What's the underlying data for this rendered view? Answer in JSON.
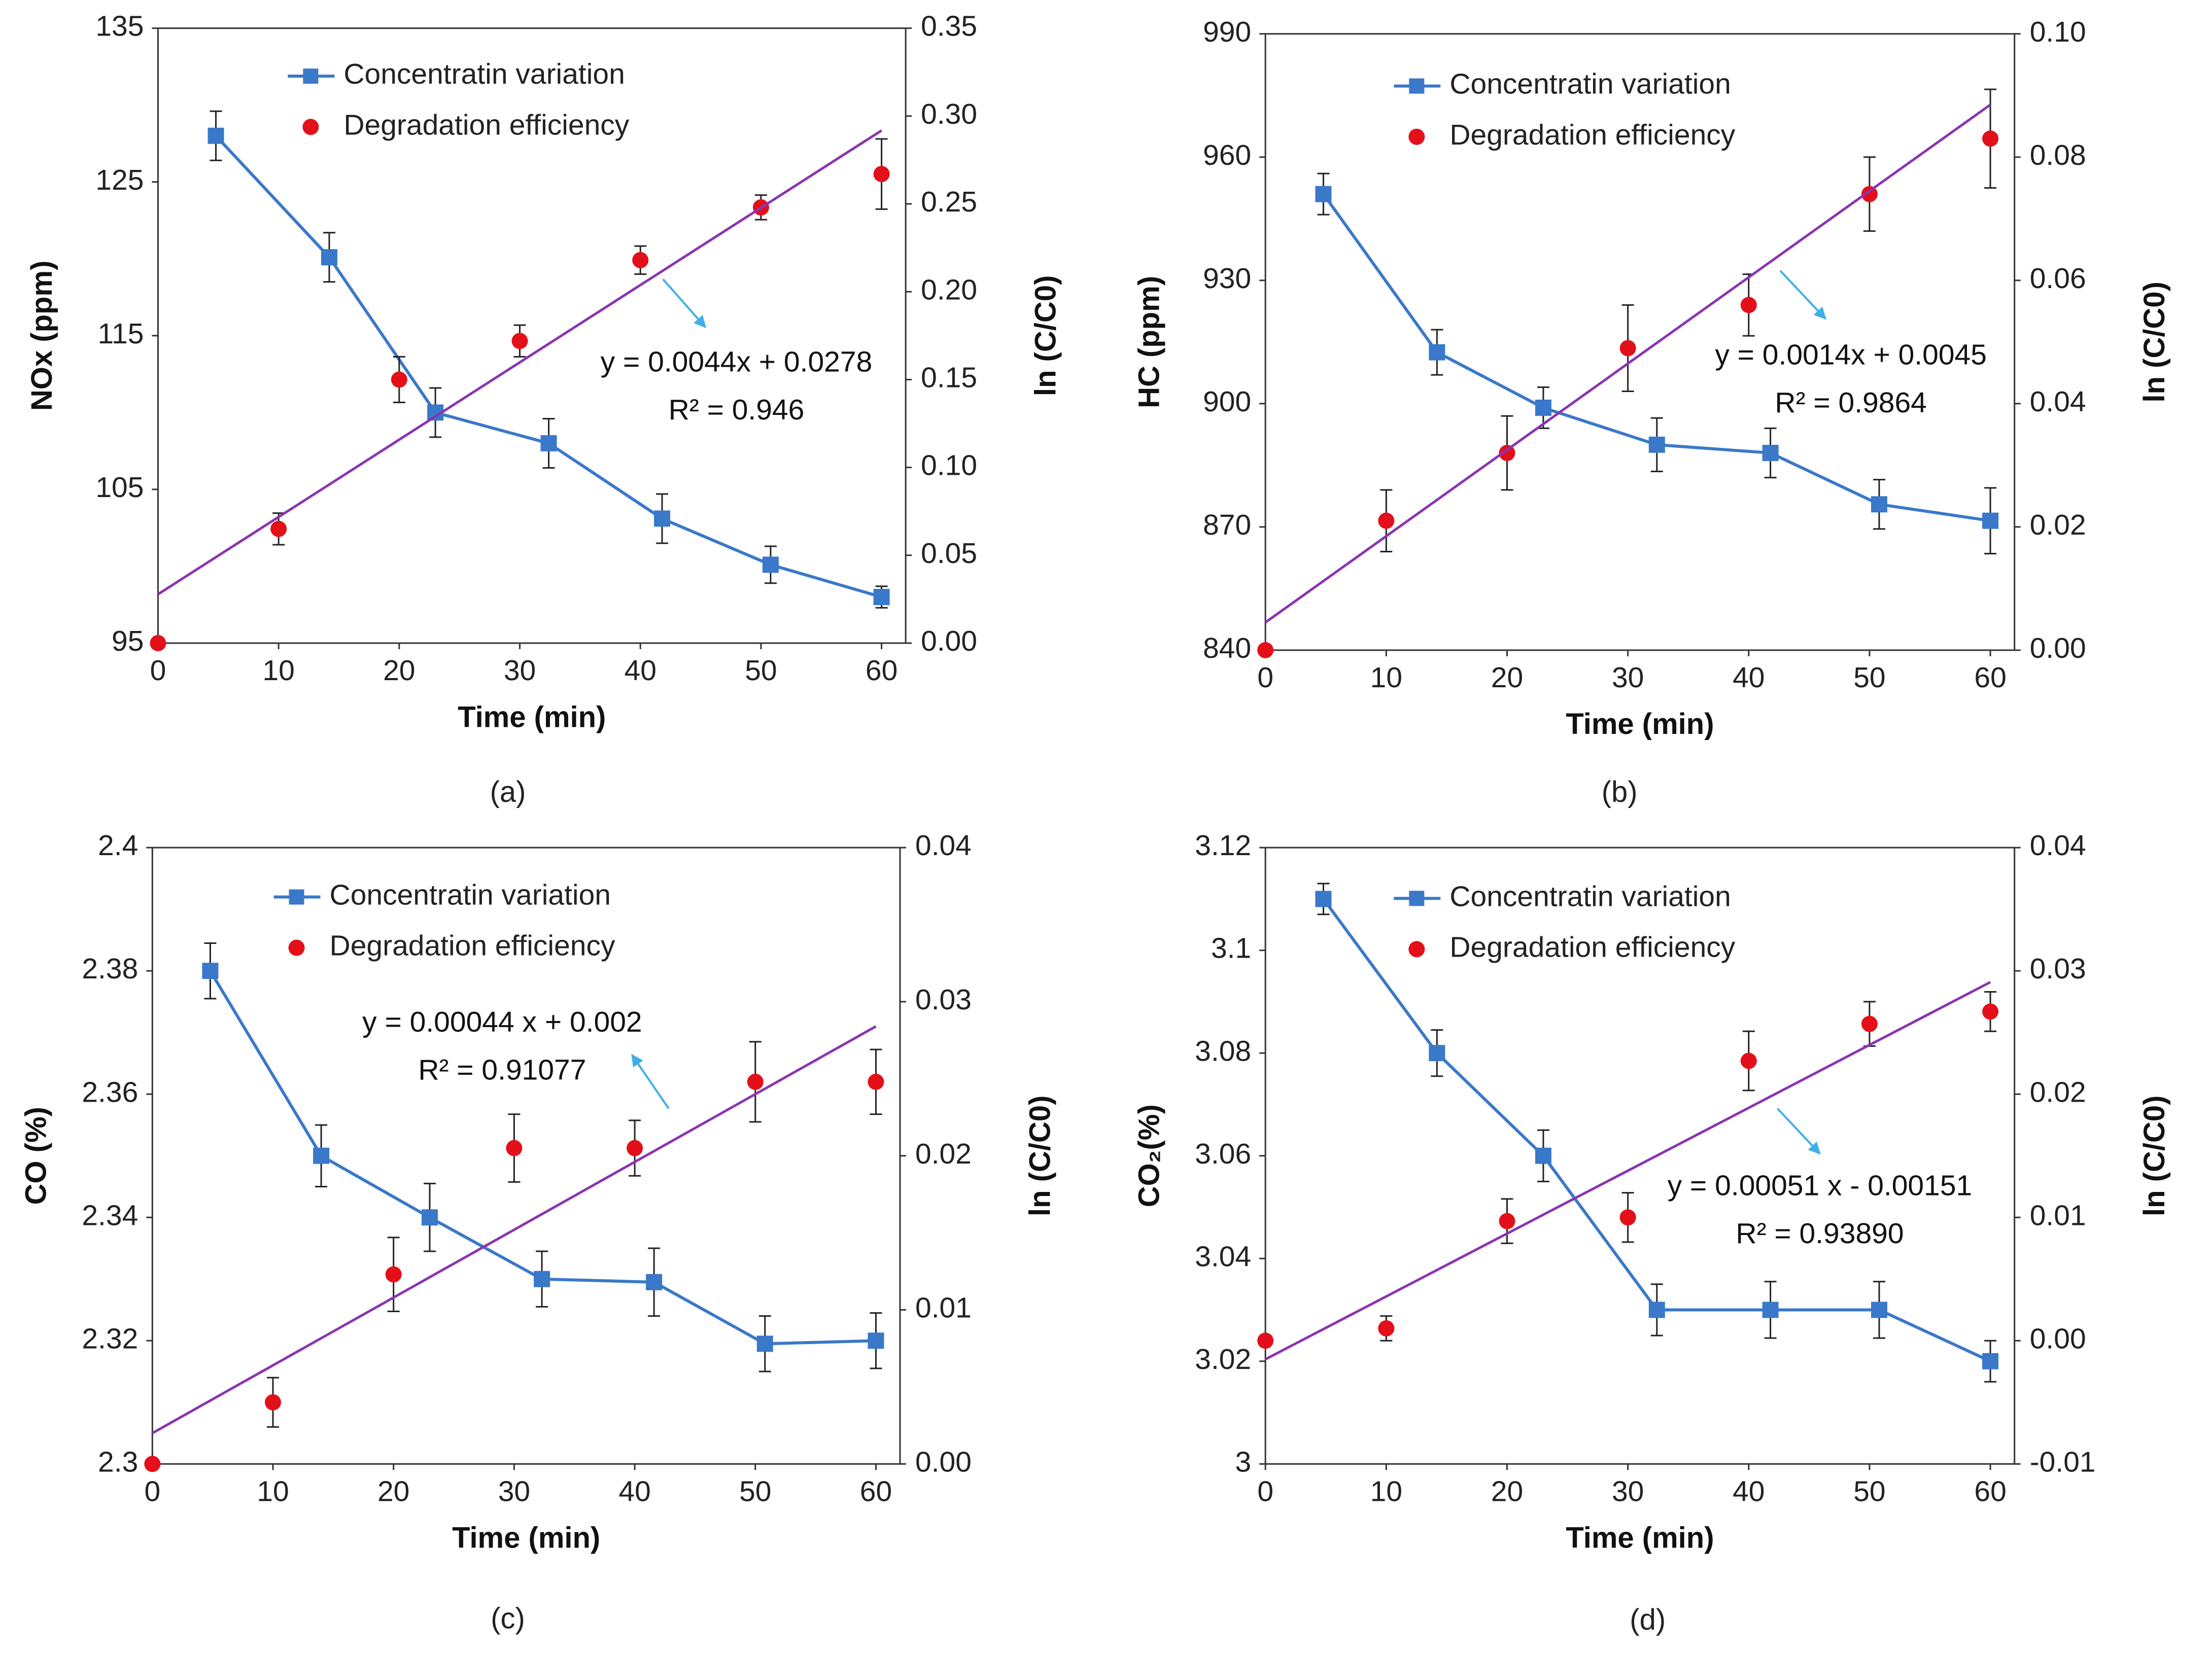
{
  "chart_data": [
    {
      "type": "line",
      "panel": "(a)",
      "xlabel": "Time (min)",
      "ylabel": "NOx (ppm)",
      "ylabel_right": "ln (C/C0)",
      "xticks": [
        "0",
        "10",
        "20",
        "30",
        "40",
        "50",
        "60"
      ],
      "yticks_left": [
        "95",
        "105",
        "115",
        "125",
        "135"
      ],
      "yticks_right": [
        "0.00",
        "0.05",
        "0.10",
        "0.15",
        "0.20",
        "0.25",
        "0.30",
        "0.35"
      ],
      "xlim": [
        0,
        62
      ],
      "ylim_left": [
        95,
        135
      ],
      "ylim_right": [
        0,
        0.35
      ],
      "series": [
        {
          "name": "Concentratin variation",
          "axis": "left",
          "style": "line-square",
          "color": "#3A78C9",
          "x": [
            4.8,
            14.2,
            23,
            32.4,
            41.8,
            50.8,
            60
          ],
          "y": [
            128,
            120.1,
            110,
            108,
            103.1,
            100.1,
            98
          ],
          "err": [
            1.6,
            1.6,
            1.6,
            1.6,
            1.6,
            1.2,
            0.7
          ]
        },
        {
          "name": "Degradation efficiency",
          "axis": "right",
          "style": "marker-circle",
          "color": "#E3101A",
          "x": [
            0,
            10,
            20,
            30,
            40,
            50,
            60
          ],
          "y": [
            0,
            0.065,
            0.15,
            0.172,
            0.218,
            0.248,
            0.267
          ],
          "err": [
            0,
            0.009,
            0.013,
            0.009,
            0.008,
            0.007,
            0.02
          ]
        },
        {
          "name": "Linear fit",
          "axis": "right",
          "style": "line",
          "color": "#8A34B2",
          "slope": 0.0044,
          "intercept": 0.0278,
          "x_range": [
            0,
            60
          ]
        }
      ],
      "equation": "y = 0.0044x + 0.0278",
      "r_squared": "R² = 0.946",
      "annotation_arrow": "light-blue arrow pointing at fit line"
    },
    {
      "type": "line",
      "panel": "(b)",
      "xlabel": "Time (min)",
      "ylabel": "HC (ppm)",
      "ylabel_right": "ln (C/C0)",
      "xticks": [
        "0",
        "10",
        "20",
        "30",
        "40",
        "50",
        "60"
      ],
      "yticks_left": [
        "840",
        "870",
        "900",
        "930",
        "960",
        "990"
      ],
      "yticks_right": [
        "0.00",
        "0.02",
        "0.04",
        "0.06",
        "0.08",
        "0.10"
      ],
      "xlim": [
        0,
        62
      ],
      "ylim_left": [
        840,
        990
      ],
      "ylim_right": [
        0,
        0.1
      ],
      "series": [
        {
          "name": "Concentratin variation",
          "axis": "left",
          "style": "line-square",
          "color": "#3A78C9",
          "x": [
            4.8,
            14.2,
            23,
            32.4,
            41.8,
            50.8,
            60
          ],
          "y": [
            951,
            912.5,
            899,
            890,
            888,
            875.5,
            871.5
          ],
          "err": [
            5,
            5.5,
            5,
            6.5,
            6,
            6,
            8
          ]
        },
        {
          "name": "Degradation efficiency",
          "axis": "right",
          "style": "marker-circle",
          "color": "#E3101A",
          "x": [
            0,
            10,
            20,
            30,
            40,
            50,
            60
          ],
          "y": [
            0,
            0.021,
            0.032,
            0.049,
            0.056,
            0.074,
            0.083
          ],
          "err": [
            0,
            0.005,
            0.006,
            0.007,
            0.005,
            0.006,
            0.008
          ]
        },
        {
          "name": "Linear fit",
          "axis": "right",
          "style": "line",
          "color": "#8A34B2",
          "slope": 0.0014,
          "intercept": 0.0045,
          "x_range": [
            0,
            60
          ]
        }
      ],
      "equation": "y = 0.0014x + 0.0045",
      "r_squared": "R² = 0.9864",
      "annotation_arrow": "light-blue arrow pointing at fit line"
    },
    {
      "type": "line",
      "panel": "(c)",
      "xlabel": "Time (min)",
      "ylabel": "CO (%)",
      "ylabel_right": "ln (C/C0)",
      "xticks": [
        "0",
        "10",
        "20",
        "30",
        "40",
        "50",
        "60"
      ],
      "yticks_left": [
        "2.3",
        "2.32",
        "2.34",
        "2.36",
        "2.38",
        "2.4"
      ],
      "yticks_right": [
        "0.00",
        "0.01",
        "0.02",
        "0.03",
        "0.04"
      ],
      "xlim": [
        0,
        62
      ],
      "ylim_left": [
        2.3,
        2.4
      ],
      "ylim_right": [
        0,
        0.04
      ],
      "series": [
        {
          "name": "Concentratin variation",
          "axis": "left",
          "style": "line-square",
          "color": "#3A78C9",
          "x": [
            4.8,
            14,
            23,
            32.3,
            41.6,
            50.8,
            60
          ],
          "y": [
            2.38,
            2.35,
            2.34,
            2.33,
            2.3295,
            2.3195,
            2.32
          ],
          "err": [
            0.0045,
            0.005,
            0.0055,
            0.0045,
            0.0055,
            0.0045,
            0.0045
          ]
        },
        {
          "name": "Degradation efficiency",
          "axis": "right",
          "style": "marker-circle",
          "color": "#E3101A",
          "x": [
            0,
            10,
            20,
            30,
            40,
            50,
            60
          ],
          "y": [
            0,
            0.004,
            0.0123,
            0.0205,
            0.0205,
            0.0248,
            0.0248
          ],
          "err": [
            0,
            0.0016,
            0.0024,
            0.0022,
            0.0018,
            0.0026,
            0.0021
          ]
        },
        {
          "name": "Linear fit",
          "axis": "right",
          "style": "line",
          "color": "#8A34B2",
          "slope": 0.00044,
          "intercept": 0.002,
          "x_range": [
            0,
            60
          ]
        }
      ],
      "equation": "y = 0.00044 x + 0.002",
      "r_squared": "R² = 0.91077",
      "annotation_arrow": "light-blue arrow pointing at fit line"
    },
    {
      "type": "line",
      "panel": "(d)",
      "xlabel": "Time (min)",
      "ylabel": "CO₂(%)",
      "ylabel_right": "ln (C/C0)",
      "xticks": [
        "0",
        "10",
        "20",
        "30",
        "40",
        "50",
        "60"
      ],
      "yticks_left": [
        "3",
        "3.02",
        "3.04",
        "3.06",
        "3.08",
        "3.1",
        "3.12"
      ],
      "yticks_right": [
        "-0.01",
        "0.00",
        "0.01",
        "0.02",
        "0.03",
        "0.04"
      ],
      "xlim": [
        0,
        62
      ],
      "ylim_left": [
        3,
        3.12
      ],
      "ylim_right": [
        -0.01,
        0.04
      ],
      "series": [
        {
          "name": "Concentratin variation",
          "axis": "left",
          "style": "line-square",
          "color": "#3A78C9",
          "x": [
            4.8,
            14.2,
            23,
            32.4,
            41.8,
            50.8,
            60
          ],
          "y": [
            3.11,
            3.08,
            3.06,
            3.03,
            3.03,
            3.03,
            3.02
          ],
          "err": [
            0.003,
            0.0045,
            0.005,
            0.005,
            0.0055,
            0.0055,
            0.004
          ]
        },
        {
          "name": "Degradation efficiency",
          "axis": "right",
          "style": "marker-circle",
          "color": "#E3101A",
          "x": [
            0,
            10,
            20,
            30,
            40,
            50,
            60
          ],
          "y": [
            0,
            0.001,
            0.0097,
            0.01,
            0.0227,
            0.0257,
            0.0267
          ],
          "err": [
            0,
            0.001,
            0.0018,
            0.002,
            0.0024,
            0.0018,
            0.0016
          ]
        },
        {
          "name": "Linear fit",
          "axis": "right",
          "style": "line",
          "color": "#8A34B2",
          "slope": 0.00051,
          "intercept": -0.00151,
          "x_range": [
            0,
            60
          ]
        }
      ],
      "equation": "y = 0.00051 x - 0.00151",
      "r_squared": "R² = 0.93890",
      "annotation_arrow": "light-blue arrow pointing at fit line"
    }
  ]
}
